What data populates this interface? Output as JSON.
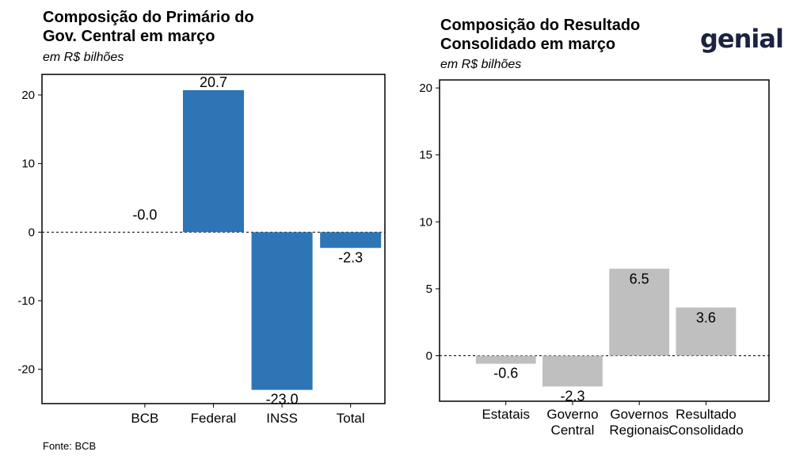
{
  "left": {
    "title_line1": "Composição do Primário do",
    "title_line2": "Gov. Central em março",
    "subtitle": "em R$ bilhões"
  },
  "right": {
    "title_line1": "Composição do Resultado",
    "title_line2": "Consolidado em março",
    "subtitle": "em R$ bilhões"
  },
  "source": "Fonte: BCB",
  "logo": "genial",
  "colors": {
    "left_bar": "#2e75b6",
    "right_bar": "#bfbfbf"
  },
  "chart_data": [
    {
      "type": "bar",
      "title": "Composição do Primário do Gov. Central em março",
      "ylabel": "",
      "xlabel": "",
      "categories": [
        "BCB",
        "Federal",
        "INSS",
        "Total"
      ],
      "values": [
        -0.0,
        20.7,
        -23.0,
        -2.3
      ],
      "data_labels": [
        "-0.0",
        "20.7",
        "-23.0",
        "-2.3"
      ],
      "ylim": [
        -25,
        23
      ],
      "yticks": [
        -20,
        -10,
        0,
        10,
        20
      ],
      "zero_line": "dashed"
    },
    {
      "type": "bar",
      "title": "Composição do Resultado Consolidado em março",
      "ylabel": "",
      "xlabel": "",
      "categories": [
        [
          "Estatais"
        ],
        [
          "Governo",
          "Central"
        ],
        [
          "Governos",
          "Regionais"
        ],
        [
          "Resultado",
          "Consolidado"
        ]
      ],
      "values": [
        -0.6,
        -2.3,
        6.5,
        3.6
      ],
      "data_labels": [
        "-0.6",
        "-2.3",
        "6.5",
        "3.6"
      ],
      "ylim": [
        -3.4,
        20.6
      ],
      "yticks": [
        0,
        5,
        10,
        15,
        20
      ],
      "zero_line": "dashed"
    }
  ]
}
